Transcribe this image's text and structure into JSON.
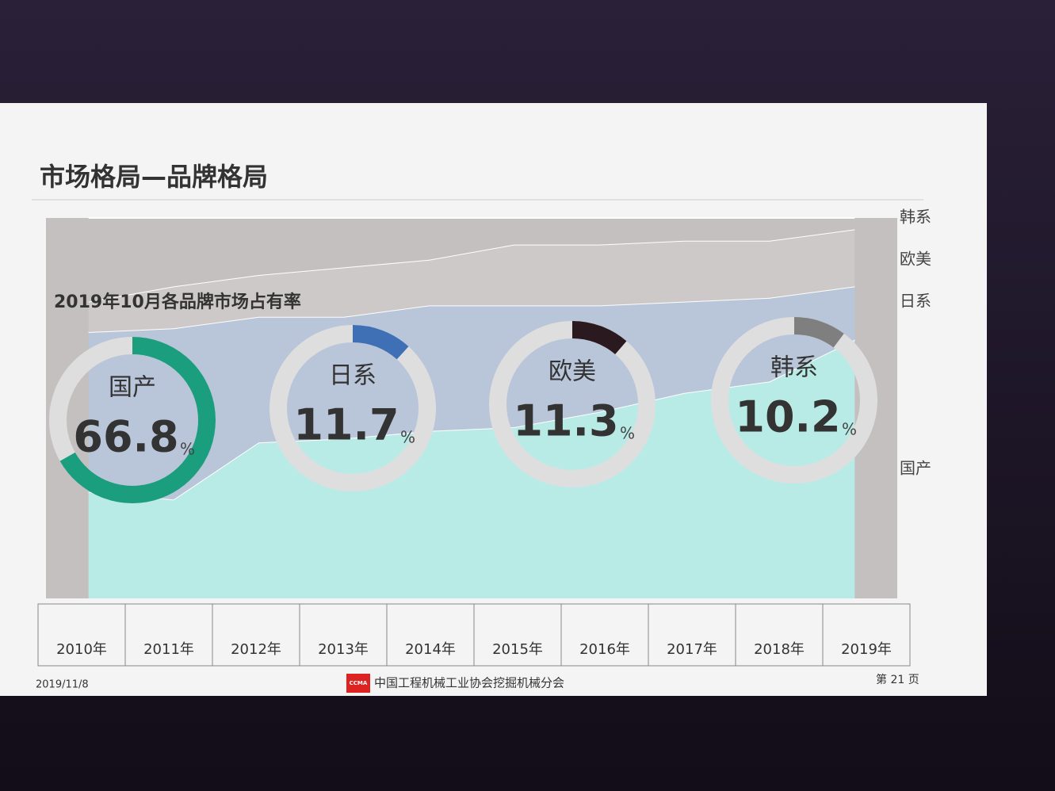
{
  "header": {
    "title": "市场格局—品牌格局"
  },
  "chart_data": [
    {
      "type": "area",
      "stacked": true,
      "categories": [
        "2010年",
        "2011年",
        "2012年",
        "2013年",
        "2014年",
        "2015年",
        "2016年",
        "2017年",
        "2018年",
        "2019年"
      ],
      "ylim": [
        0,
        100
      ],
      "series": [
        {
          "name": "国产",
          "color": "#b9ebe6",
          "values": [
            28,
            26,
            41,
            42,
            44,
            45,
            49,
            54,
            57,
            68
          ]
        },
        {
          "name": "日系",
          "color": "#b9c5d9",
          "values": [
            42,
            45,
            33,
            32,
            33,
            32,
            28,
            24,
            22,
            14
          ]
        },
        {
          "name": "欧美",
          "color": "#cdc9c9",
          "values": [
            8,
            11,
            11,
            13,
            12,
            16,
            16,
            16,
            15,
            15
          ]
        },
        {
          "name": "韩系",
          "color": "#c4c0c0",
          "values": [
            22,
            18,
            15,
            13,
            11,
            7,
            7,
            6,
            6,
            3
          ]
        }
      ]
    },
    {
      "type": "donut",
      "title": "2019年10月各品牌市场占有率",
      "unit": "%",
      "categories": [
        "国产",
        "日系",
        "欧美",
        "韩系"
      ],
      "values": [
        66.8,
        11.7,
        11.3,
        10.2
      ],
      "colors": [
        "#1a9e7e",
        "#3f6fb5",
        "#2a1a1f",
        "#7f7f7f"
      ],
      "ring_color": "#dedede"
    }
  ],
  "footer": {
    "date": "2019/11/8",
    "logo": "CCMA",
    "organization": "中国工程机械工业协会挖掘机械分会",
    "page": "第 21 页"
  }
}
